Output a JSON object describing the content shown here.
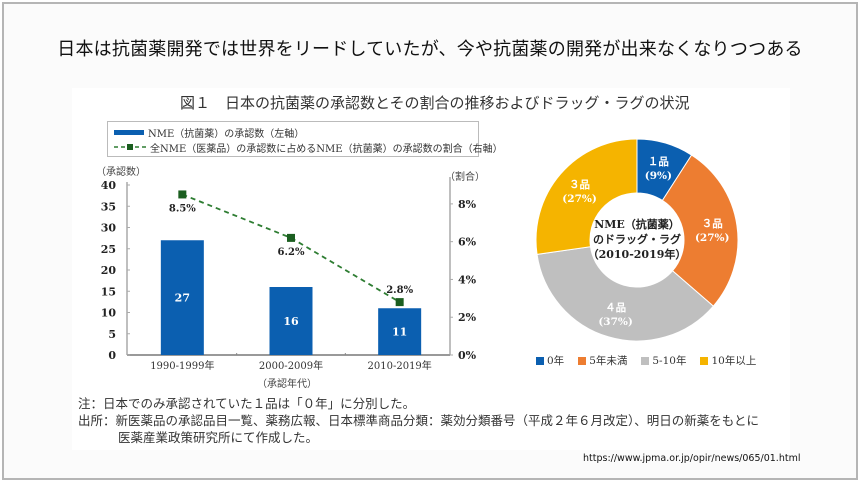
{
  "slide": {
    "title": "日本は抗菌薬開発では世界をリードしていたが、今や抗菌薬の開発が出来なくなりつつある",
    "source_url": "https://www.jpma.or.jp/opir/news/065/01.html"
  },
  "figure": {
    "title": "図１　日本の抗菌薬の承認数とその割合の推移およびドラッグ・ラグの状況",
    "notes": [
      "注：日本でのみ承認されていた１品は「０年」に分別した。",
      "出所：新医薬品の承認品目一覧、薬務広報、日本標準商品分類：薬効分類番号（平成２年６月改定）、明日の新薬をもとに",
      "医薬産業政策研究所にて作成した。"
    ]
  },
  "colors": {
    "bar": "#0b5fb0",
    "line": "#2e7d32",
    "marker": "#1b5e20",
    "pie": [
      "#0b5fb0",
      "#ed7d31",
      "#bfbfbf",
      "#f5b400"
    ]
  },
  "chart_data": [
    {
      "type": "bar",
      "subtype": "bar+line dual-axis",
      "categories": [
        "1990-1999年",
        "2000-2009年",
        "2010-2019年"
      ],
      "xlabel": "（承認年代）",
      "ylabel_left": "（承認数）",
      "ylabel_right": "（割合）",
      "ylim_left": [
        0,
        40
      ],
      "yticks_left": [
        0,
        5,
        10,
        15,
        20,
        25,
        30,
        35,
        40
      ],
      "ylim_right": [
        0,
        9
      ],
      "yticks_right": [
        "0%",
        "2%",
        "4%",
        "6%",
        "8%"
      ],
      "yticks_right_values": [
        0,
        2,
        4,
        6,
        8
      ],
      "legend": {
        "position": "top-left",
        "entries": [
          "NME（抗菌薬）の承認数（左軸）",
          "全NME（医薬品）の承認数に占めるNME（抗菌薬）の承認数の割合（右軸）"
        ]
      },
      "series": [
        {
          "name": "NME（抗菌薬）の承認数（左軸）",
          "type": "bar",
          "axis": "left",
          "values": [
            27,
            16,
            11
          ],
          "labels": [
            "27",
            "16",
            "11"
          ]
        },
        {
          "name": "全NME（医薬品）の承認数に占めるNME（抗菌薬）の承認数の割合（右軸）",
          "type": "line",
          "axis": "right",
          "values": [
            8.5,
            6.2,
            2.8
          ],
          "labels": [
            "8.5%",
            "6.2%",
            "2.8%"
          ]
        }
      ]
    },
    {
      "type": "pie",
      "subtype": "donut",
      "center_label": [
        "NME（抗菌薬）",
        "のドラッグ・ラグ",
        "（2010-2019年）"
      ],
      "categories": [
        "0年",
        "5年未満",
        "5-10年",
        "10年以上"
      ],
      "values": [
        1,
        3,
        4,
        3
      ],
      "percent": [
        9,
        27,
        37,
        27
      ],
      "slice_labels": [
        [
          "１品",
          "(9%)"
        ],
        [
          "３品",
          "(27%)"
        ],
        [
          "４品",
          "(37%)"
        ],
        [
          "３品",
          "(27%)"
        ]
      ],
      "legend": {
        "position": "bottom",
        "entries": [
          "0年",
          "5年未満",
          "5-10年",
          "10年以上"
        ]
      }
    }
  ]
}
